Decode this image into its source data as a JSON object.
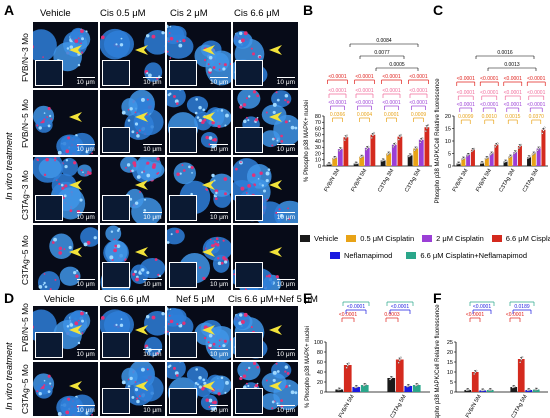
{
  "panel_labels": {
    "A": "A",
    "B": "B",
    "C": "C",
    "D": "D",
    "E": "E",
    "F": "F"
  },
  "panel_A": {
    "columns": [
      "Vehicle",
      "Cis 0.5 μM",
      "Cis 2 μM",
      "Cis 6.6 μM"
    ],
    "rows": [
      "FVB/N~3 Mo",
      "FVB/N~5 Mo",
      "C3TAg~3 Mo",
      "C3TAg~5 Mo"
    ],
    "side_label": "In vitro treatment",
    "scale_bar": "10 μm"
  },
  "panel_D": {
    "columns": [
      "Vehicle",
      "Cis 6.6 μM",
      "Nef 5 μM",
      "Cis 6.6 μM+Nef 5 μM"
    ],
    "rows": [
      "FVB/N~5 Mo",
      "C3TAg~5 Mo"
    ],
    "side_label": "In vitro treatment",
    "scale_bar": "10 μm"
  },
  "colors": {
    "vehicle": "#1a1a1a",
    "cis05": "#e8a317",
    "cis2": "#9b3fd6",
    "cis66": "#d42a1e",
    "nef": "#1a1ae0",
    "cisnef": "#2aa68a",
    "red_brace": "#e0201b",
    "pink_brace": "#f06a9a",
    "purple_brace": "#9b3fd6",
    "gold_brace": "#e8a317",
    "teal_brace": "#2aa68a",
    "blue_brace": "#1a1ae0"
  },
  "legend": [
    "Vehicle",
    "0.5 μM Cisplatin",
    "2 μM Cisplatin",
    "6.6 μM Cisplatin",
    "Neflamapimod",
    "6.6 μM Cisplatin+Neflamapimod"
  ],
  "chart_data": [
    {
      "panel": "B",
      "type": "bar",
      "ylabel": "% Phospho p38 MAPK+ nuclei",
      "ylim": [
        0,
        80
      ],
      "yticks": [
        "0",
        "10",
        "20",
        "30",
        "40",
        "50",
        "60",
        "70",
        "80"
      ],
      "categories": [
        "FVB/N 3M",
        "FVB/N 5M",
        "C3TAg 3M",
        "C3TAg 5M"
      ],
      "series": [
        {
          "name": "Vehicle",
          "values": [
            3,
            4,
            9,
            17
          ]
        },
        {
          "name": "0.5 μM Cisplatin",
          "values": [
            13,
            15,
            20,
            28
          ]
        },
        {
          "name": "2 μM Cisplatin",
          "values": [
            27,
            29,
            34,
            42
          ]
        },
        {
          "name": "6.6 μM Cisplatin",
          "values": [
            46,
            50,
            47,
            62
          ]
        }
      ],
      "annotations": {
        "top": [
          "0.0084",
          "0.0077",
          "0.0005"
        ],
        "red": [
          "<0.0001",
          "<0.0001",
          "<0.0001",
          "<0.0001"
        ],
        "pink": [
          "<0.0001",
          "<0.0001",
          "<0.0001",
          "<0.0001"
        ],
        "purple": [
          "<0.0001",
          "<0.0001",
          "<0.0001",
          "<0.0001"
        ],
        "gold": [
          "0.0366",
          "0.0004",
          "0.0001",
          "0.0009"
        ]
      }
    },
    {
      "panel": "C",
      "type": "bar",
      "ylabel": "Phospho p38 MAPK/Cell Relative fluorescence",
      "ylim": [
        0,
        20
      ],
      "yticks": [
        "0",
        "5",
        "10",
        "15",
        "20"
      ],
      "categories": [
        "FVB/N 3M",
        "FVB/N 5M",
        "C3TAg 3M",
        "C3TAg 5M"
      ],
      "series": [
        {
          "name": "Vehicle",
          "values": [
            1.0,
            1.2,
            1.8,
            3.5
          ]
        },
        {
          "name": "0.5 μM Cisplatin",
          "values": [
            3.0,
            3.2,
            3.8,
            5.0
          ]
        },
        {
          "name": "2 μM Cisplatin",
          "values": [
            4.5,
            5.0,
            5.5,
            7.0
          ]
        },
        {
          "name": "6.6 μM Cisplatin",
          "values": [
            6.5,
            8.5,
            8.0,
            14.5
          ]
        }
      ],
      "annotations": {
        "top": [
          "0.0016",
          "0.0013"
        ],
        "red": [
          "<0.0001",
          "<0.0001",
          "<0.0001",
          "<0.0001"
        ],
        "pink": [
          "<0.0001",
          "<0.0001",
          "<0.0001",
          "<0.0001"
        ],
        "purple": [
          "<0.0001",
          "<0.0001",
          "<0.0001",
          "<0.0001"
        ],
        "gold": [
          "0.0099",
          "0.0010",
          "0.0015",
          "0.0370"
        ]
      }
    },
    {
      "panel": "E",
      "type": "bar",
      "ylabel": "% Phospho p38 MAPK+ nuclei",
      "ylim": [
        0,
        100
      ],
      "yticks": [
        "0",
        "20",
        "40",
        "60",
        "80",
        "100"
      ],
      "categories": [
        "FVB/N 5M",
        "C3TAg 5M"
      ],
      "series": [
        {
          "name": "Vehicle",
          "values": [
            5,
            28
          ]
        },
        {
          "name": "6.6 μM Cisplatin",
          "values": [
            54,
            65
          ]
        },
        {
          "name": "Neflamapimod",
          "values": [
            10,
            12
          ]
        },
        {
          "name": "6.6 μM Cisplatin+Neflamapimod",
          "values": [
            14,
            14
          ]
        }
      ],
      "annotations": {
        "red": [
          "<0.0001",
          "0.0003"
        ],
        "blue": [
          "<0.0001",
          "<0.0001"
        ],
        "teal": [
          "<0.0001",
          "0.0015"
        ]
      }
    },
    {
      "panel": "F",
      "type": "bar",
      "ylabel": "Phospho p38 MAPK/Cell Relative fluorescence",
      "ylim": [
        0,
        25
      ],
      "yticks": [
        "0",
        "5",
        "10",
        "15",
        "20",
        "25"
      ],
      "categories": [
        "FVB/N 5M",
        "C3TAg 5M"
      ],
      "series": [
        {
          "name": "Vehicle",
          "values": [
            1.0,
            2.5
          ]
        },
        {
          "name": "6.6 μM Cisplatin",
          "values": [
            10.0,
            16.5
          ]
        },
        {
          "name": "Neflamapimod",
          "values": [
            0.8,
            1.0
          ]
        },
        {
          "name": "6.6 μM Cisplatin+Neflamapimod",
          "values": [
            1.0,
            1.2
          ]
        }
      ],
      "annotations": {
        "red": [
          "<0.0001",
          "<0.0001"
        ],
        "blue": [
          "<0.0001",
          "0.0189"
        ],
        "teal": [
          "<0.0001",
          "0.0041"
        ]
      }
    }
  ]
}
